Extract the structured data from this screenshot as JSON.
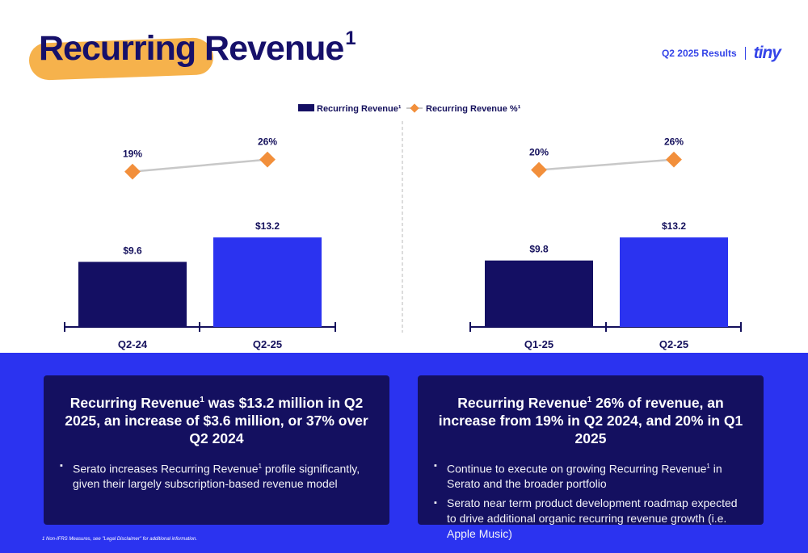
{
  "header": {
    "title": "Recurring Revenue",
    "title_sup": "1",
    "results_label": "Q2 2025 Results",
    "logo_text": "tiny"
  },
  "colors": {
    "navy": "#140f63",
    "blue": "#2b33f0",
    "orange": "#f28f3b",
    "line_grey": "#c8c8c8",
    "band_blue": "#2b33f0"
  },
  "chart_data": [
    {
      "type": "bar",
      "categories": [
        "Q2-24",
        "Q2-25"
      ],
      "series": [
        {
          "name": "Recurring Revenue¹",
          "values": [
            9.6,
            13.2
          ],
          "labels": [
            "$9.6",
            "$13.2"
          ]
        },
        {
          "name": "Recurring Revenue %¹",
          "values": [
            19,
            26
          ],
          "labels": [
            "19%",
            "26%"
          ],
          "render": "line"
        }
      ]
    },
    {
      "type": "bar",
      "categories": [
        "Q1-25",
        "Q2-25"
      ],
      "series": [
        {
          "name": "Recurring Revenue¹",
          "values": [
            9.8,
            13.2
          ],
          "labels": [
            "$9.8",
            "$13.2"
          ]
        },
        {
          "name": "Recurring Revenue %¹",
          "values": [
            20,
            26
          ],
          "labels": [
            "20%",
            "26%"
          ],
          "render": "line"
        }
      ]
    }
  ],
  "legend": {
    "bar_label": "Recurring Revenue¹",
    "line_label": "Recurring Revenue %¹"
  },
  "cards": {
    "left": {
      "heading_a": "Recurring Revenue",
      "heading_sup": "1",
      "heading_b": " was $13.2 million in Q2 2025, an increase of $3.6 million, or 37% over Q2 2024",
      "bullets": [
        {
          "a": "Serato increases Recurring Revenue",
          "sup": "1",
          "b": " profile significantly, given their largely subscription-based revenue model"
        }
      ]
    },
    "right": {
      "heading_a": "Recurring Revenue",
      "heading_sup": "1",
      "heading_b": " 26% of revenue, an increase from 19% in Q2 2024, and 20% in Q1 2025",
      "bullets": [
        {
          "a": "Continue to execute on growing Recurring Revenue",
          "sup": "1",
          "b": " in Serato and the broader portfolio"
        },
        {
          "a": "Serato near term product development roadmap expected to drive additional organic recurring revenue growth (i.e. Apple Music)",
          "sup": "",
          "b": ""
        }
      ]
    }
  },
  "footnote": "1 Non-IFRS Measures, see \"Legal Disclaimer\" for additional information."
}
